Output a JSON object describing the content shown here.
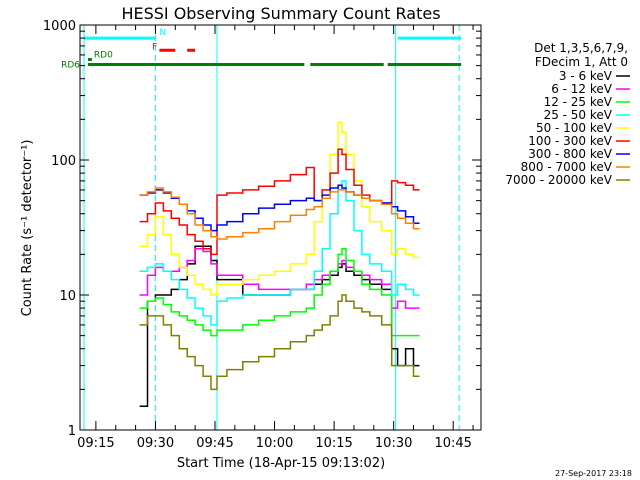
{
  "chart_data": {
    "type": "line",
    "title": "HESSI Observing Summary Count Rates",
    "xlabel": "Start Time (18-Apr-15 09:13:02)",
    "ylabel": "Count Rate (s⁻¹ detector⁻¹)",
    "yscale": "log",
    "xlim": [
      "09:11",
      "10:52"
    ],
    "ylim": [
      1,
      1000
    ],
    "x_ticks": [
      "09:15",
      "09:30",
      "09:45",
      "10:00",
      "10:15",
      "10:30",
      "10:45"
    ],
    "y_ticks": [
      "1",
      "10",
      "100",
      "1000"
    ],
    "grid": false,
    "legend_position": "right",
    "legend_header": [
      "Det 1,3,5,6,7,9,",
      "FDecim 1, Att 0"
    ],
    "footer": "27-Sep-2017 23:18",
    "sample_x": [
      "09:26",
      "09:28",
      "09:30",
      "09:32",
      "09:34",
      "09:36",
      "09:38",
      "09:40",
      "09:42",
      "09:44",
      "09:45.5",
      "09:48",
      "09:52",
      "09:56",
      "10:00",
      "10:04",
      "10:08",
      "10:10",
      "10:12",
      "10:14",
      "10:16",
      "10:17",
      "10:18",
      "10:20",
      "10:22",
      "10:24",
      "10:27",
      "10:29.5",
      "10:31",
      "10:33",
      "10:35"
    ],
    "series": [
      {
        "name": "3 - 6 keV",
        "color": "#000000",
        "values": [
          1.5,
          9,
          10,
          10,
          11,
          13,
          17,
          23,
          23,
          18,
          13,
          13,
          10,
          10,
          10,
          11,
          11,
          12,
          13,
          14,
          16,
          17,
          15,
          14,
          13,
          12,
          11,
          4,
          3,
          4,
          3
        ]
      },
      {
        "name": "6 - 12 keV",
        "color": "#ff00ff",
        "values": [
          10,
          14,
          16,
          15,
          15,
          16,
          18,
          22,
          21,
          17,
          14,
          14,
          12,
          11,
          11,
          11,
          12,
          13,
          14,
          15,
          17,
          18,
          16,
          15,
          14,
          13,
          12,
          8,
          9,
          8,
          8
        ]
      },
      {
        "name": "12 - 25 keV",
        "color": "#00ff00",
        "values": [
          8,
          9,
          9.5,
          8.5,
          7.5,
          7,
          6.5,
          6,
          5.5,
          5,
          5.5,
          5.5,
          6,
          6.5,
          7,
          7.5,
          8,
          10,
          12,
          15,
          20,
          22,
          18,
          15,
          12,
          11,
          10,
          5,
          5,
          5,
          5
        ]
      },
      {
        "name": "25 - 50 keV",
        "color": "#00ffff",
        "values": [
          15,
          16,
          17,
          15,
          13,
          11,
          9.5,
          8,
          7,
          6,
          9,
          9.5,
          10,
          10,
          10,
          11,
          11,
          15,
          22,
          40,
          65,
          70,
          50,
          30,
          20,
          17,
          15,
          10,
          12,
          11,
          10
        ]
      },
      {
        "name": "50 - 100 keV",
        "color": "#ffff00",
        "values": [
          23,
          28,
          38,
          28,
          20,
          16,
          14,
          12,
          11,
          10,
          12,
          12,
          13,
          14,
          15,
          17,
          20,
          35,
          60,
          110,
          190,
          160,
          110,
          70,
          45,
          35,
          30,
          20,
          22,
          20,
          19
        ]
      },
      {
        "name": "100 - 300 keV",
        "color": "#ff0000",
        "values": [
          35,
          40,
          48,
          42,
          37,
          33,
          28,
          25,
          22,
          20,
          55,
          57,
          60,
          64,
          70,
          78,
          88,
          50,
          60,
          80,
          120,
          110,
          85,
          65,
          55,
          50,
          48,
          70,
          68,
          65,
          60
        ]
      },
      {
        "name": "300 - 800 keV",
        "color": "#0000ff",
        "values": [
          55,
          57,
          60,
          57,
          52,
          47,
          42,
          37,
          33,
          30,
          33,
          35,
          40,
          44,
          47,
          50,
          52,
          50,
          55,
          62,
          65,
          62,
          58,
          55,
          52,
          50,
          48,
          45,
          42,
          38,
          34
        ]
      },
      {
        "name": "800 - 7000 keV",
        "color": "#ff8000",
        "values": [
          55,
          58,
          62,
          58,
          53,
          47,
          40,
          33,
          30,
          27,
          26,
          27,
          29,
          31,
          35,
          39,
          43,
          45,
          52,
          58,
          60,
          60,
          58,
          55,
          52,
          50,
          47,
          40,
          37,
          34,
          31
        ]
      },
      {
        "name": "7000 - 20000 keV",
        "color": "#808000",
        "values": [
          6,
          7,
          7,
          6,
          5,
          4,
          3.5,
          3,
          2.5,
          2,
          2.5,
          2.8,
          3.2,
          3.5,
          4,
          4.5,
          5,
          5.5,
          6,
          7,
          9,
          10,
          9,
          8,
          7.5,
          7,
          6,
          3,
          3,
          3,
          2.5
        ]
      }
    ],
    "flag_bars": [
      {
        "label": "N",
        "color": "#00ffff",
        "level": 800,
        "segments": [
          [
            "09:12",
            "09:30"
          ],
          [
            "10:31",
            "10:47"
          ]
        ]
      },
      {
        "label": "F",
        "color": "#ff0000",
        "level": 650,
        "segments": [
          [
            "09:31",
            "09:35"
          ],
          [
            "09:38",
            "09:40"
          ]
        ]
      },
      {
        "label": "RD0",
        "color": "#008000",
        "level": 555,
        "segments": [
          [
            "09:13",
            "09:14"
          ]
        ]
      },
      {
        "label": "RD6",
        "color": "#008000",
        "level": 510,
        "segments": [
          [
            "09:13",
            "09:45.5"
          ],
          [
            "09:45.5",
            "10:07.5"
          ],
          [
            "10:09",
            "10:27.5"
          ],
          [
            "10:28.5",
            "10:47"
          ]
        ]
      }
    ],
    "vertical_lines": [
      {
        "x": "09:30",
        "color": "#00ffff",
        "style": "dashed"
      },
      {
        "x": "10:46.5",
        "color": "#00ffff",
        "style": "dashed"
      },
      {
        "x": "09:45.5",
        "color": "#00ffff",
        "style": "solid"
      },
      {
        "x": "10:30.5",
        "color": "#00ffff",
        "style": "solid"
      },
      {
        "x": "09:12",
        "color": "#00ffff",
        "style": "solid"
      }
    ]
  }
}
